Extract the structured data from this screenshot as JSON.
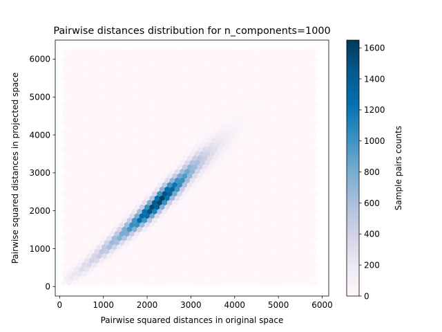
{
  "chart_data": {
    "type": "heatmap",
    "subtype": "hexbin",
    "title": "Pairwise distances distribution for n_components=1000",
    "xlabel": "Pairwise squared distances in original space",
    "ylabel": "Pairwise squared distances in projected space",
    "xlim": [
      -100,
      6150
    ],
    "ylim": [
      -250,
      6500
    ],
    "xticks": [
      0,
      1000,
      2000,
      3000,
      4000,
      5000,
      6000
    ],
    "yticks": [
      0,
      1000,
      2000,
      3000,
      4000,
      5000,
      6000
    ],
    "tick_labels": {
      "x": [
        "0",
        "1000",
        "2000",
        "3000",
        "4000",
        "5000",
        "6000"
      ],
      "y": [
        "0",
        "1000",
        "2000",
        "3000",
        "4000",
        "5000",
        "6000"
      ]
    },
    "grid": false,
    "hexbin_extent": {
      "x": [
        100,
        5850
      ],
      "y": [
        100,
        6250
      ]
    },
    "density_ridge": [
      {
        "x": 200,
        "y": 200,
        "count": 150
      },
      {
        "x": 500,
        "y": 450,
        "count": 300
      },
      {
        "x": 800,
        "y": 750,
        "count": 420
      },
      {
        "x": 1100,
        "y": 1050,
        "count": 600
      },
      {
        "x": 1400,
        "y": 1350,
        "count": 800
      },
      {
        "x": 1700,
        "y": 1650,
        "count": 1100
      },
      {
        "x": 1900,
        "y": 1850,
        "count": 1350
      },
      {
        "x": 2100,
        "y": 2050,
        "count": 1550
      },
      {
        "x": 2300,
        "y": 2280,
        "count": 1640
      },
      {
        "x": 2500,
        "y": 2500,
        "count": 1450
      },
      {
        "x": 2700,
        "y": 2700,
        "count": 1150
      },
      {
        "x": 2900,
        "y": 2950,
        "count": 900
      },
      {
        "x": 3100,
        "y": 3200,
        "count": 650
      },
      {
        "x": 3400,
        "y": 3500,
        "count": 380
      },
      {
        "x": 3700,
        "y": 3800,
        "count": 180
      },
      {
        "x": 4000,
        "y": 4100,
        "count": 70
      },
      {
        "x": 4300,
        "y": 4400,
        "count": 20
      }
    ],
    "colorbar": {
      "label": "Sample pairs counts",
      "range": [
        0,
        1650
      ],
      "ticks": [
        0,
        200,
        400,
        600,
        800,
        1000,
        1200,
        1400,
        1600
      ],
      "tick_labels": [
        "0",
        "200",
        "400",
        "600",
        "800",
        "1000",
        "1200",
        "1400",
        "1600"
      ],
      "colormap": "PuBu",
      "colormap_stops": [
        "#fff7fb",
        "#ece7f2",
        "#d0d1e6",
        "#a6bddb",
        "#74a9cf",
        "#3690c0",
        "#0570b0",
        "#045a8d",
        "#023858"
      ]
    }
  }
}
